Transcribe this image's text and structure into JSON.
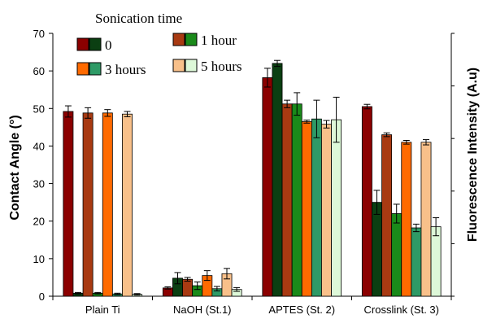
{
  "chart_data": {
    "type": "bar",
    "title": "",
    "ylabel": "Contact Angle (°)",
    "y2label": "Fluorescence Intensity (A.u)",
    "xlabel": "",
    "ylim": [
      0,
      70
    ],
    "yticks": [
      0,
      10,
      20,
      30,
      40,
      50,
      60,
      70
    ],
    "grid": false,
    "legend_title": "Sonication time",
    "legend_position": "top-left",
    "categories": [
      "Plain Ti",
      "NaOH (St.1)",
      "APTES (St. 2)",
      "Crosslink (St. 3)"
    ],
    "series": [
      {
        "name": "0",
        "metric": "contact angle",
        "color": "#8b0000",
        "values": [
          49.2,
          2.2,
          58.2,
          50.5
        ],
        "errors": [
          1.5,
          0.3,
          2.5,
          0.6
        ]
      },
      {
        "name": "0",
        "metric": "fluorescence",
        "color": "#0b3f12",
        "values": [
          0.8,
          4.8,
          62.0,
          25.0
        ],
        "errors": [
          0.2,
          1.5,
          0.8,
          3.2
        ]
      },
      {
        "name": "1 hour",
        "metric": "contact angle",
        "color": "#a83a12",
        "values": [
          48.8,
          4.5,
          51.2,
          43.0
        ],
        "errors": [
          1.4,
          0.5,
          1.0,
          0.5
        ]
      },
      {
        "name": "1 hour",
        "metric": "fluorescence",
        "color": "#1a8a1a",
        "values": [
          0.8,
          2.8,
          51.2,
          22.0
        ],
        "errors": [
          0.2,
          1.0,
          3.0,
          2.5
        ]
      },
      {
        "name": "3 hours",
        "metric": "contact angle",
        "color": "#ff6a00",
        "values": [
          48.8,
          5.5,
          46.5,
          41.0
        ],
        "errors": [
          0.9,
          1.3,
          0.4,
          0.5
        ]
      },
      {
        "name": "3 hours",
        "metric": "fluorescence",
        "color": "#2e9a66",
        "values": [
          0.6,
          2.0,
          47.2,
          18.2
        ],
        "errors": [
          0.2,
          0.6,
          5.0,
          1.0
        ]
      },
      {
        "name": "5 hours",
        "metric": "contact angle",
        "color": "#f8c08a",
        "values": [
          48.5,
          6.0,
          45.8,
          41.0
        ],
        "errors": [
          0.7,
          1.4,
          1.0,
          0.7
        ]
      },
      {
        "name": "5 hours",
        "metric": "fluorescence",
        "color": "#ddf8d8",
        "values": [
          0.5,
          1.8,
          47.0,
          18.5
        ],
        "errors": [
          0.2,
          0.5,
          6.0,
          2.4
        ]
      }
    ],
    "legend": [
      {
        "label": "0",
        "colors": [
          "#8b0000",
          "#0b3f12"
        ]
      },
      {
        "label": "1 hour",
        "colors": [
          "#a83a12",
          "#1a8a1a"
        ]
      },
      {
        "label": "3 hours",
        "colors": [
          "#ff6a00",
          "#2e9a66"
        ]
      },
      {
        "label": "5 hours",
        "colors": [
          "#f8c08a",
          "#ddf8d8"
        ]
      }
    ]
  }
}
